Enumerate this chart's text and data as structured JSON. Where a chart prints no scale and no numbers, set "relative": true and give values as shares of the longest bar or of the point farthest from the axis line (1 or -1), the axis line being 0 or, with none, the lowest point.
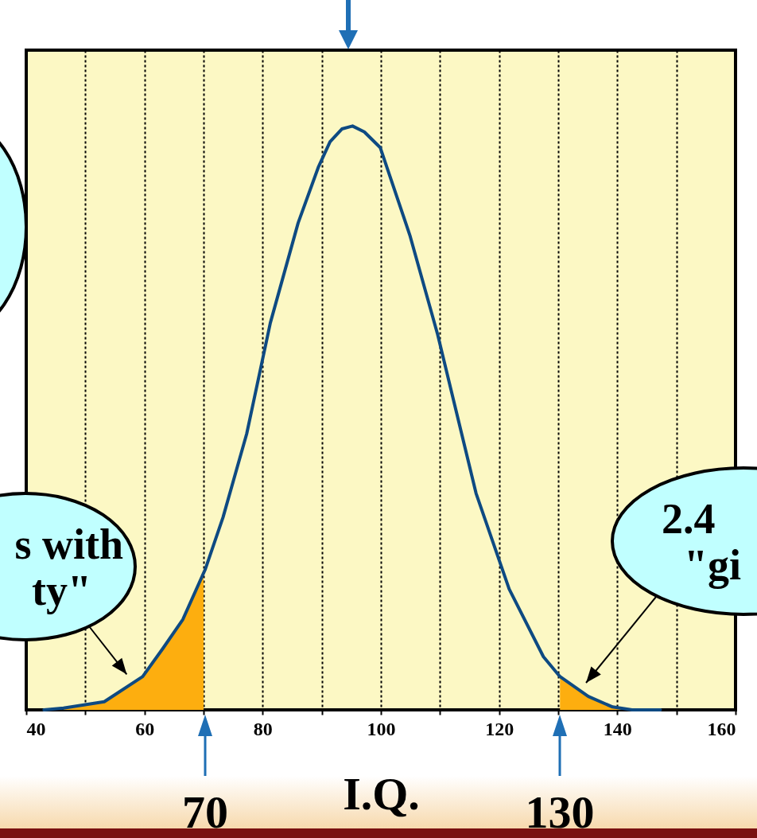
{
  "chart_data": {
    "type": "line",
    "xlabel": "I.Q.",
    "relative": true,
    "xlim": [
      40,
      160
    ],
    "xticks": [
      40,
      {
        "value": 50,
        "label": null
      },
      60,
      {
        "value": 70,
        "label": null
      },
      80,
      {
        "value": 90,
        "label": null
      },
      100,
      {
        "value": 110,
        "label": null
      },
      120,
      {
        "value": 130,
        "label": null
      },
      140,
      {
        "value": 150,
        "label": null
      },
      160
    ],
    "grid": "x",
    "series": [
      {
        "type": "area",
        "color": "#fdae0f",
        "x": [
          46.3,
          53.2,
          59.7,
          63.1,
          66.5,
          70
        ],
        "values": [
          0.003,
          0.014,
          0.057,
          0.105,
          0.155,
          0.24
        ]
      },
      {
        "type": "area",
        "color": "#fdae0f",
        "x": [
          130.3,
          135.1,
          139.2,
          142.5
        ],
        "values": [
          0.057,
          0.023,
          0.005,
          0
        ]
      },
      {
        "type": "line",
        "color": "#0e4a82",
        "x": [
          43,
          46.3,
          53.2,
          59.7,
          63.1,
          66.5,
          70.3,
          73.3,
          77.3,
          81.3,
          86,
          89.4,
          91.4,
          93.4,
          95.2,
          97.2,
          99.9,
          104.9,
          109.6,
          116.1,
          121.7,
          127.5,
          130.3,
          135.1,
          139.2,
          142.5,
          147.3
        ],
        "values": [
          0,
          0.003,
          0.014,
          0.057,
          0.105,
          0.155,
          0.241,
          0.33,
          0.473,
          0.663,
          0.834,
          0.929,
          0.973,
          0.995,
          1,
          0.99,
          0.963,
          0.813,
          0.643,
          0.371,
          0.207,
          0.091,
          0.057,
          0.023,
          0.005,
          0,
          0
        ]
      }
    ],
    "annotations": [
      {
        "text": "s with\nty\"",
        "x": 57,
        "y": 0.05
      },
      "2.4\n\"gi",
      "70",
      "130"
    ]
  }
}
